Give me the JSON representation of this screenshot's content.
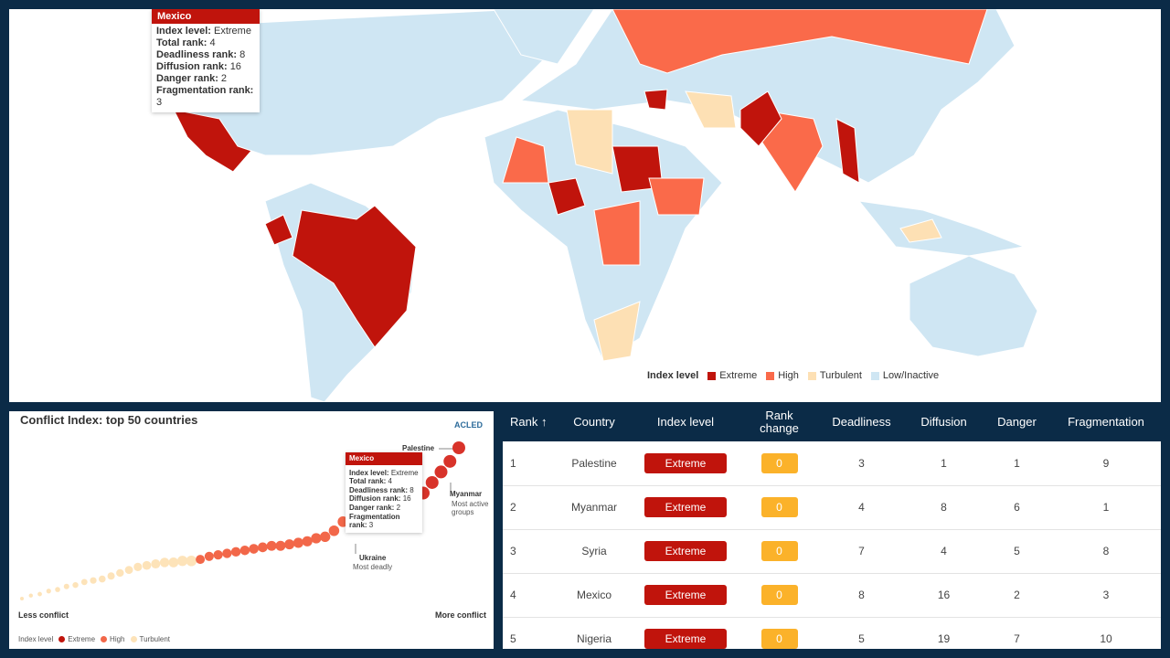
{
  "map": {
    "tooltip": {
      "country": "Mexico",
      "lines": [
        {
          "k": "Index level:",
          "v": "Extreme"
        },
        {
          "k": "Total rank:",
          "v": "4"
        },
        {
          "k": "Deadliness rank:",
          "v": "8"
        },
        {
          "k": "Diffusion rank:",
          "v": "16"
        },
        {
          "k": "Danger rank:",
          "v": "2"
        },
        {
          "k": "Fragmentation rank:",
          "v": "3"
        }
      ]
    },
    "legend": {
      "title": "Index level",
      "items": [
        {
          "label": "Extreme",
          "color": "#c0140c"
        },
        {
          "label": "High",
          "color": "#fa6a4a"
        },
        {
          "label": "Turbulent",
          "color": "#fde0b4"
        },
        {
          "label": "Low/Inactive",
          "color": "#cfe6f3"
        }
      ]
    }
  },
  "chart": {
    "title": "Conflict Index: top 50 countries",
    "brand": "ACLED",
    "less": "Less conflict",
    "more": "More conflict",
    "annotations": {
      "palestine": "Palestine",
      "myanmar": "Myanmar",
      "myanmar_note": "Most active groups",
      "ukraine": "Ukraine",
      "ukraine_note": "Most deadly"
    },
    "tooltip": {
      "country": "Mexico",
      "lines": [
        {
          "k": "Index level:",
          "v": "Extreme"
        },
        {
          "k": "Total rank:",
          "v": "4"
        },
        {
          "k": "Deadliness rank:",
          "v": "8"
        },
        {
          "k": "Diffusion rank:",
          "v": "16"
        },
        {
          "k": "Danger rank:",
          "v": "2"
        },
        {
          "k": "Fragmentation rank:",
          "v": "3"
        }
      ]
    },
    "legend": {
      "title": "Index level",
      "items": [
        {
          "label": "Extreme",
          "color": "#c0140c"
        },
        {
          "label": "High",
          "color": "#f26749"
        },
        {
          "label": "Turbulent",
          "color": "#fde3b9"
        }
      ]
    }
  },
  "chart_data": {
    "type": "scatter",
    "title": "Conflict Index: top 50 countries",
    "xlabel_left": "Less conflict",
    "xlabel_right": "More conflict",
    "levels": [
      "Turbulent",
      "Turbulent",
      "Turbulent",
      "Turbulent",
      "Turbulent",
      "Turbulent",
      "Turbulent",
      "Turbulent",
      "Turbulent",
      "Turbulent",
      "Turbulent",
      "Turbulent",
      "Turbulent",
      "Turbulent",
      "Turbulent",
      "Turbulent",
      "Turbulent",
      "Turbulent",
      "Turbulent",
      "Turbulent",
      "High",
      "High",
      "High",
      "High",
      "High",
      "High",
      "High",
      "High",
      "High",
      "High",
      "High",
      "High",
      "High",
      "High",
      "High",
      "High",
      "High",
      "High",
      "High",
      "High",
      "High",
      "High",
      "High",
      "High",
      "Extreme",
      "Extreme",
      "Extreme",
      "Extreme",
      "Extreme",
      "Extreme"
    ],
    "values": [
      0.0,
      0.02,
      0.03,
      0.05,
      0.06,
      0.08,
      0.09,
      0.11,
      0.12,
      0.13,
      0.15,
      0.17,
      0.19,
      0.21,
      0.22,
      0.23,
      0.24,
      0.24,
      0.25,
      0.25,
      0.26,
      0.28,
      0.29,
      0.3,
      0.31,
      0.32,
      0.33,
      0.34,
      0.35,
      0.35,
      0.36,
      0.37,
      0.38,
      0.4,
      0.41,
      0.45,
      0.51,
      0.53,
      0.54,
      0.55,
      0.55,
      0.56,
      0.57,
      0.59,
      0.64,
      0.7,
      0.77,
      0.84,
      0.91,
      1.0
    ]
  },
  "table": {
    "headers": [
      "Rank ↑",
      "Country",
      "Index level",
      "Rank change",
      "Deadliness",
      "Diffusion",
      "Danger",
      "Fragmentation"
    ],
    "rows": [
      {
        "rank": "1",
        "country": "Palestine",
        "level": "Extreme",
        "change": "0",
        "deadliness": "3",
        "diffusion": "1",
        "danger": "1",
        "fragmentation": "9"
      },
      {
        "rank": "2",
        "country": "Myanmar",
        "level": "Extreme",
        "change": "0",
        "deadliness": "4",
        "diffusion": "8",
        "danger": "6",
        "fragmentation": "1"
      },
      {
        "rank": "3",
        "country": "Syria",
        "level": "Extreme",
        "change": "0",
        "deadliness": "7",
        "diffusion": "4",
        "danger": "5",
        "fragmentation": "8"
      },
      {
        "rank": "4",
        "country": "Mexico",
        "level": "Extreme",
        "change": "0",
        "deadliness": "8",
        "diffusion": "16",
        "danger": "2",
        "fragmentation": "3"
      },
      {
        "rank": "5",
        "country": "Nigeria",
        "level": "Extreme",
        "change": "0",
        "deadliness": "5",
        "diffusion": "19",
        "danger": "7",
        "fragmentation": "10"
      }
    ]
  }
}
